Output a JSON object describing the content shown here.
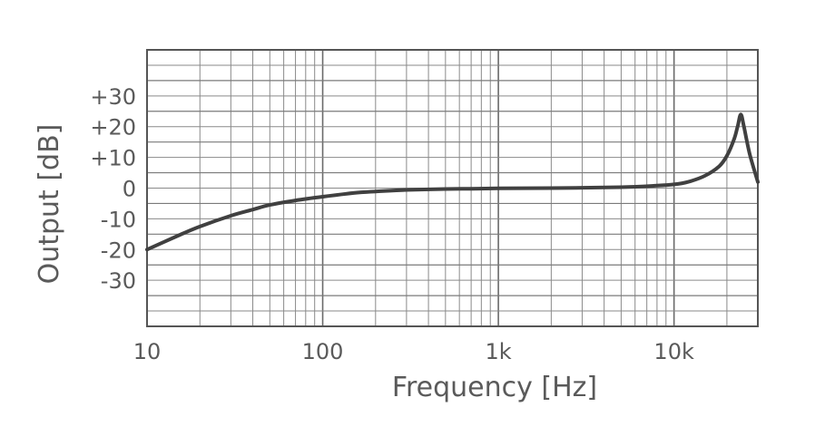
{
  "chart_data": {
    "type": "line",
    "title": "",
    "xlabel": "Frequency [Hz]",
    "ylabel": "Output [dB]",
    "x_scale": "log",
    "xlim": [
      10,
      30000
    ],
    "ylim": [
      -45,
      45
    ],
    "grid": true,
    "x_ticks": [
      {
        "value": 10,
        "label": "10"
      },
      {
        "value": 100,
        "label": "100"
      },
      {
        "value": 1000,
        "label": "1k"
      },
      {
        "value": 10000,
        "label": "10k"
      }
    ],
    "y_ticks": [
      {
        "value": 30,
        "label": "+30"
      },
      {
        "value": 20,
        "label": "+20"
      },
      {
        "value": 10,
        "label": "+10"
      },
      {
        "value": 0,
        "label": "0"
      },
      {
        "value": -10,
        "label": "-10"
      },
      {
        "value": -20,
        "label": "-20"
      },
      {
        "value": -30,
        "label": "-30"
      }
    ],
    "series": [
      {
        "color": "#404040",
        "x": [
          10,
          15,
          20,
          30,
          40,
          50,
          70,
          100,
          150,
          200,
          300,
          500,
          700,
          1000,
          2000,
          5000,
          8000,
          10000,
          12000,
          15000,
          18000,
          20000,
          22000,
          23000,
          24000,
          25000,
          27000,
          30000
        ],
        "y": [
          -20,
          -15.5,
          -12.5,
          -9,
          -7,
          -5.5,
          -4,
          -2.8,
          -1.6,
          -1.1,
          -0.6,
          -0.3,
          -0.2,
          -0.1,
          0,
          0.3,
          0.8,
          1.2,
          2,
          4,
          7,
          10.5,
          16,
          20,
          24,
          20,
          11,
          2
        ]
      }
    ]
  }
}
